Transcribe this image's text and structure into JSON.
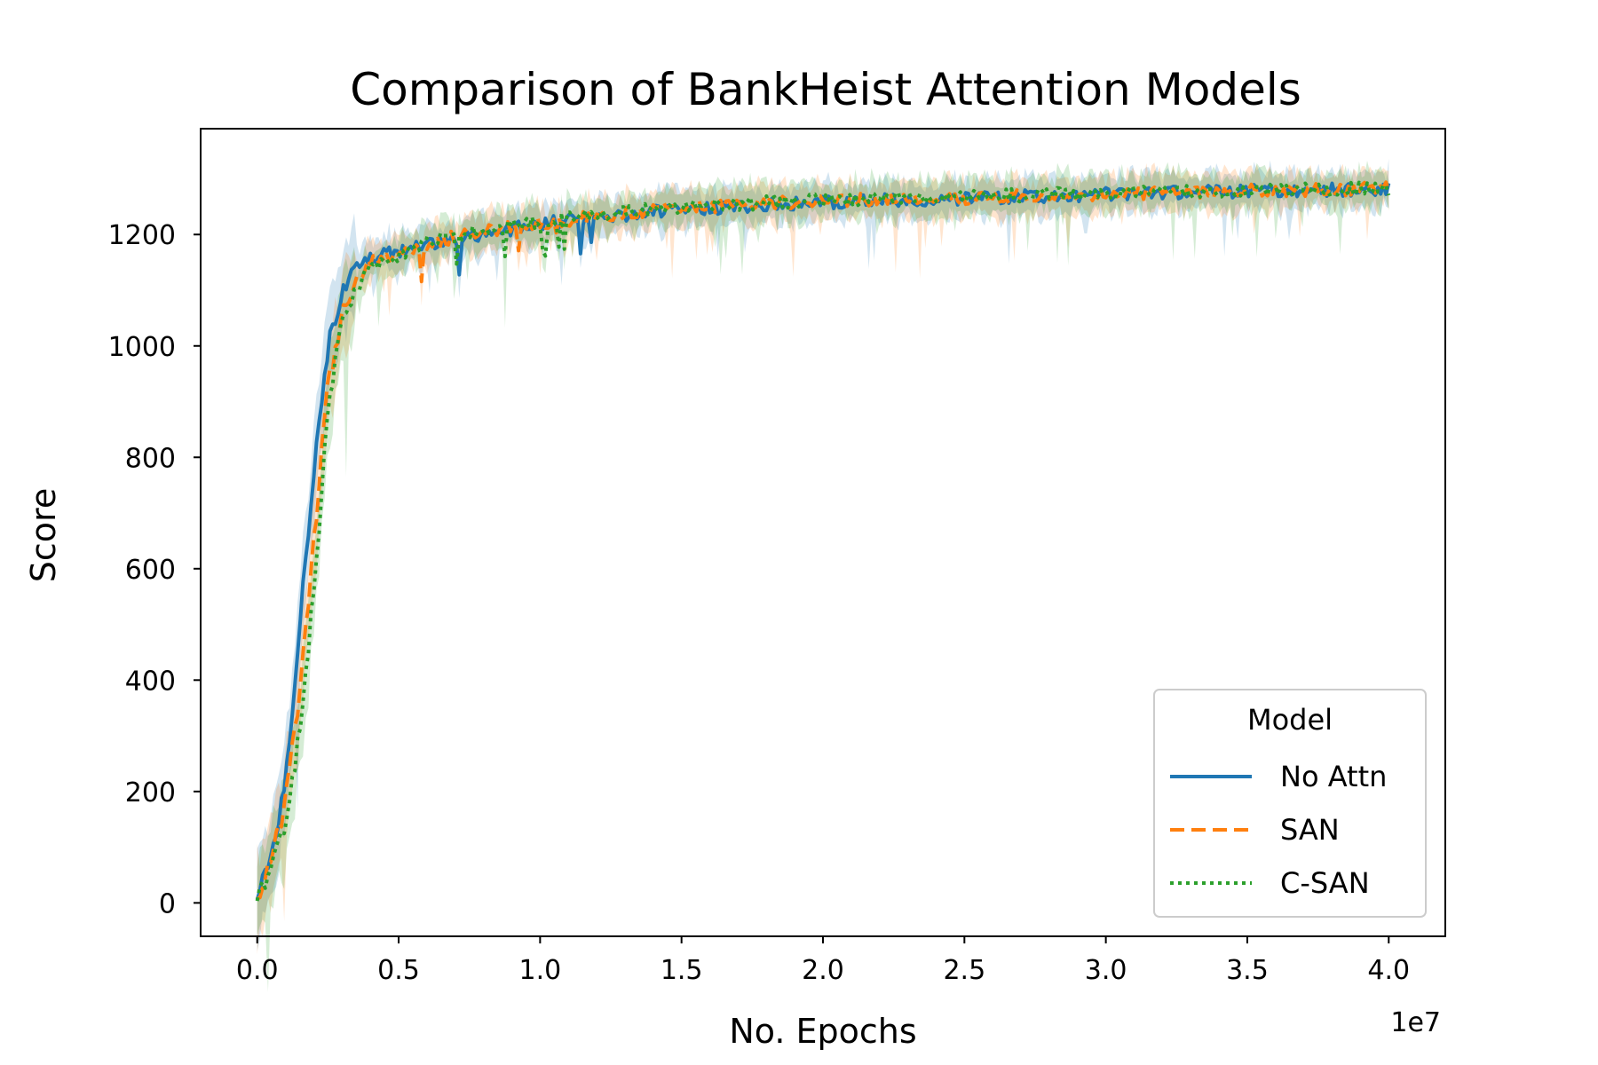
{
  "chart_data": {
    "type": "line",
    "title": "Comparison of BankHeist Attention Models",
    "xlabel": "No. Epochs",
    "ylabel": "Score",
    "x_offset_label": "1e7",
    "x_ticks": [
      0.0,
      0.5,
      1.0,
      1.5,
      2.0,
      2.5,
      3.0,
      3.5,
      4.0
    ],
    "x_tick_labels": [
      "0.0",
      "0.5",
      "1.0",
      "1.5",
      "2.0",
      "2.5",
      "3.0",
      "3.5",
      "4.0"
    ],
    "y_ticks": [
      0,
      200,
      400,
      600,
      800,
      1000,
      1200
    ],
    "y_tick_labels": [
      "0",
      "200",
      "400",
      "600",
      "800",
      "1000",
      "1200"
    ],
    "xlim": [
      -0.2,
      4.2
    ],
    "ylim": [
      -60,
      1390
    ],
    "grid": false,
    "legend": {
      "title": "Model",
      "placement": "lower-right"
    },
    "series": [
      {
        "name": "No Attn",
        "color": "#1f77b4",
        "style": "solid",
        "x": [
          0.0,
          0.05,
          0.1,
          0.15,
          0.2,
          0.25,
          0.3,
          0.35,
          0.4,
          0.5,
          0.6,
          0.7,
          0.8,
          0.9,
          1.0,
          1.2,
          1.5,
          2.0,
          2.5,
          3.0,
          3.5,
          4.0
        ],
        "y": [
          15,
          90,
          220,
          500,
          780,
          1000,
          1100,
          1140,
          1160,
          1170,
          1180,
          1190,
          1200,
          1210,
          1220,
          1230,
          1245,
          1258,
          1265,
          1272,
          1278,
          1282
        ]
      },
      {
        "name": "SAN",
        "color": "#ff7f0e",
        "style": "dashed",
        "x": [
          0.0,
          0.05,
          0.1,
          0.15,
          0.2,
          0.25,
          0.3,
          0.35,
          0.4,
          0.5,
          0.6,
          0.7,
          0.8,
          0.9,
          1.0,
          1.2,
          1.5,
          2.0,
          2.5,
          3.0,
          3.5,
          4.0
        ],
        "y": [
          15,
          75,
          180,
          380,
          650,
          930,
          1060,
          1120,
          1150,
          1170,
          1185,
          1195,
          1205,
          1212,
          1222,
          1232,
          1248,
          1260,
          1266,
          1273,
          1279,
          1283
        ]
      },
      {
        "name": "C-SAN",
        "color": "#2ca02c",
        "style": "dotted",
        "x": [
          0.0,
          0.05,
          0.1,
          0.15,
          0.2,
          0.25,
          0.3,
          0.35,
          0.4,
          0.5,
          0.6,
          0.7,
          0.8,
          0.9,
          1.0,
          1.2,
          1.5,
          2.0,
          2.5,
          3.0,
          3.5,
          4.0
        ],
        "y": [
          10,
          60,
          150,
          300,
          560,
          880,
          1040,
          1100,
          1140,
          1165,
          1185,
          1200,
          1208,
          1215,
          1225,
          1235,
          1250,
          1262,
          1268,
          1274,
          1280,
          1282
        ]
      }
    ]
  }
}
